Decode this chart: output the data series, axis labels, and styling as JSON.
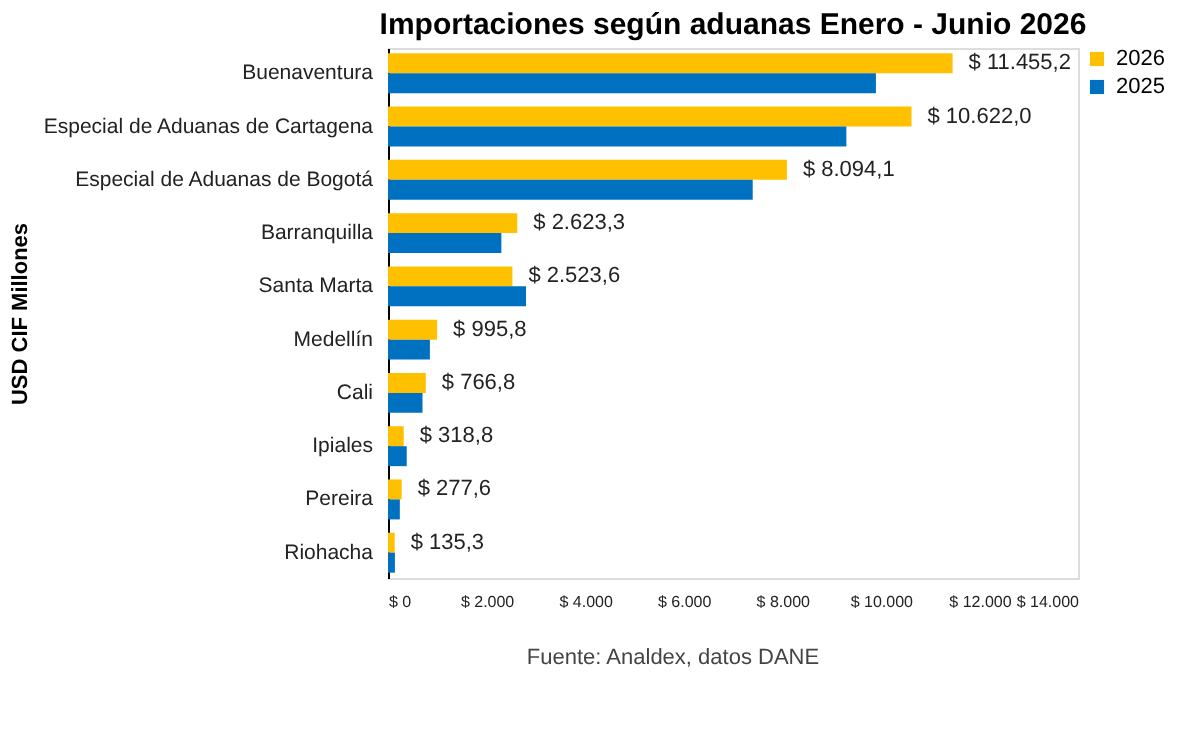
{
  "chart_data": {
    "type": "bar",
    "orientation": "horizontal",
    "title": "Importaciones según aduanas   Enero - Junio 2026",
    "ylabel": "USD CIF Millones",
    "categories": [
      "Buenaventura",
      "Especial de Aduanas de Cartagena",
      "Especial de Aduanas de Bogotá",
      "Barranquilla",
      "Santa Marta",
      "Medellín",
      "Cali",
      "Ipiales",
      "Pereira",
      "Riohacha"
    ],
    "series": [
      {
        "name": "2026",
        "color": "#ffc000",
        "values": [
          11455.2,
          10622.0,
          8094.1,
          2623.3,
          2523.6,
          995.8,
          766.8,
          318.8,
          277.6,
          135.3
        ],
        "value_labels": [
          "$ 11.455,2",
          "$ 10.622,0",
          "$ 8.094,1",
          "$ 2.623,3",
          "$ 2.523,6",
          "$ 995,8",
          "$ 766,8",
          "$ 318,8",
          "$ 277,6",
          "$ 135,3"
        ]
      },
      {
        "name": "2025",
        "color": "#0070c0",
        "values": [
          9900,
          9300,
          7400,
          2300,
          2800,
          850,
          700,
          380,
          240,
          140
        ]
      }
    ],
    "xlim": [
      0,
      14000
    ],
    "xticks": [
      {
        "value": 0,
        "label": "$ 0"
      },
      {
        "value": 2000,
        "label": "$ 2.000"
      },
      {
        "value": 4000,
        "label": "$ 4.000"
      },
      {
        "value": 6000,
        "label": "$ 6.000"
      },
      {
        "value": 8000,
        "label": "$ 8.000"
      },
      {
        "value": 10000,
        "label": "$ 10.000"
      },
      {
        "value": 12000,
        "label": "$ 12.000"
      },
      {
        "value": 14000,
        "label": "$ 14.000"
      }
    ],
    "grid": false,
    "legend": "right",
    "annotations": [
      "Fuente: Analdex, datos DANE"
    ]
  }
}
